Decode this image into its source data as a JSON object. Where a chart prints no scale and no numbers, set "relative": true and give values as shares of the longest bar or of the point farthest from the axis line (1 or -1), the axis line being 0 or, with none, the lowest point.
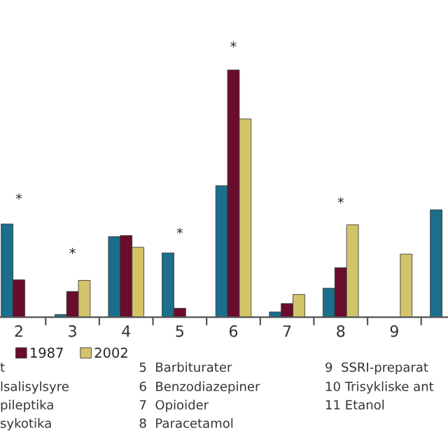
{
  "chart_data": {
    "type": "bar",
    "relative": true,
    "legend": "bottom",
    "categories": [
      "2",
      "3",
      "4",
      "5",
      "6",
      "7",
      "8",
      "9",
      null
    ],
    "series": [
      {
        "color": "#1b6e8c",
        "values": [
          0.377,
          0.011,
          0.326,
          0.26,
          0.532,
          0.021,
          0.117,
          null,
          0.434
        ]
      },
      {
        "name": "1987",
        "color": "#6a0c2d",
        "values": [
          0.151,
          0.104,
          0.33,
          0.036,
          1.0,
          0.055,
          0.2,
          null,
          null
        ]
      },
      {
        "name": "2002",
        "color": "#d3c46a",
        "values": [
          null,
          0.149,
          0.283,
          null,
          0.802,
          0.092,
          0.374,
          0.255,
          null
        ]
      }
    ],
    "annotations": [
      "*",
      "*",
      "*",
      "*",
      "*",
      "t",
      "lsalisylsyre",
      "pileptika",
      "sykotika",
      "5  Barbiturater",
      "6  Benzodiazepiner",
      "7  Opioider",
      "8  Paracetamol",
      "9  SSRI-preparat",
      "10 Trisykliske ant",
      "11 Etanol"
    ]
  }
}
